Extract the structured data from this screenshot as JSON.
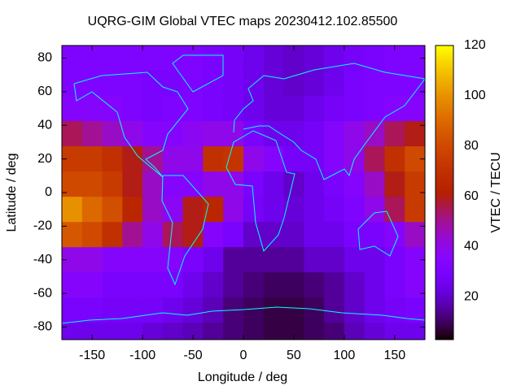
{
  "chart_data": {
    "type": "heatmap",
    "title": "UQRG-GIM Global VTEC maps 20230412.102.85500",
    "x_label": "Longitude / deg",
    "y_label": "Latitude / deg",
    "colorbar_label": "VTEC / TECU",
    "palette": "gnuplot-rgbformulae-7-5-15",
    "x": [
      -170,
      -150,
      -130,
      -110,
      -90,
      -70,
      -50,
      -30,
      -10,
      10,
      30,
      50,
      70,
      90,
      110,
      130,
      150,
      170
    ],
    "y": [
      80,
      65,
      50,
      35,
      20,
      5,
      -10,
      -25,
      -40,
      -55,
      -70,
      -85
    ],
    "values": [
      [
        32,
        32,
        32,
        32,
        32,
        32,
        32,
        30,
        28,
        25,
        22,
        20,
        22,
        25,
        28,
        30,
        32,
        32
      ],
      [
        32,
        32,
        32,
        32,
        30,
        30,
        32,
        30,
        28,
        25,
        22,
        20,
        22,
        25,
        30,
        32,
        32,
        32
      ],
      [
        35,
        35,
        35,
        32,
        30,
        32,
        32,
        30,
        28,
        25,
        22,
        22,
        25,
        28,
        30,
        32,
        35,
        35
      ],
      [
        55,
        50,
        45,
        40,
        35,
        35,
        38,
        40,
        40,
        30,
        25,
        25,
        28,
        35,
        40,
        45,
        55,
        60
      ],
      [
        75,
        75,
        70,
        60,
        50,
        40,
        40,
        70,
        72,
        40,
        35,
        28,
        28,
        35,
        40,
        55,
        70,
        80
      ],
      [
        80,
        80,
        75,
        60,
        45,
        35,
        35,
        40,
        40,
        30,
        25,
        20,
        25,
        30,
        35,
        45,
        60,
        75
      ],
      [
        100,
        90,
        82,
        65,
        45,
        38,
        60,
        65,
        40,
        28,
        25,
        22,
        25,
        28,
        32,
        40,
        55,
        75
      ],
      [
        85,
        80,
        70,
        50,
        40,
        55,
        60,
        35,
        30,
        20,
        20,
        20,
        25,
        25,
        30,
        30,
        35,
        45
      ],
      [
        40,
        40,
        35,
        35,
        35,
        35,
        30,
        25,
        15,
        15,
        15,
        15,
        20,
        20,
        25,
        25,
        30,
        35
      ],
      [
        35,
        35,
        30,
        30,
        30,
        30,
        25,
        20,
        15,
        12,
        10,
        10,
        12,
        15,
        20,
        25,
        30,
        35
      ],
      [
        30,
        30,
        28,
        28,
        28,
        25,
        22,
        18,
        12,
        10,
        8,
        8,
        10,
        15,
        20,
        25,
        28,
        30
      ],
      [
        25,
        25,
        25,
        25,
        22,
        20,
        18,
        15,
        12,
        10,
        8,
        8,
        10,
        12,
        18,
        22,
        25,
        25
      ]
    ],
    "xlim": [
      -180,
      180
    ],
    "ylim": [
      -87.5,
      87.5
    ],
    "zlim": [
      3,
      120
    ],
    "xticks": [
      -150,
      -100,
      -50,
      0,
      50,
      100,
      150
    ],
    "yticks": [
      -80,
      -60,
      -40,
      -20,
      0,
      20,
      40,
      60,
      80
    ],
    "zticks": [
      20,
      40,
      60,
      80,
      100,
      120
    ]
  }
}
